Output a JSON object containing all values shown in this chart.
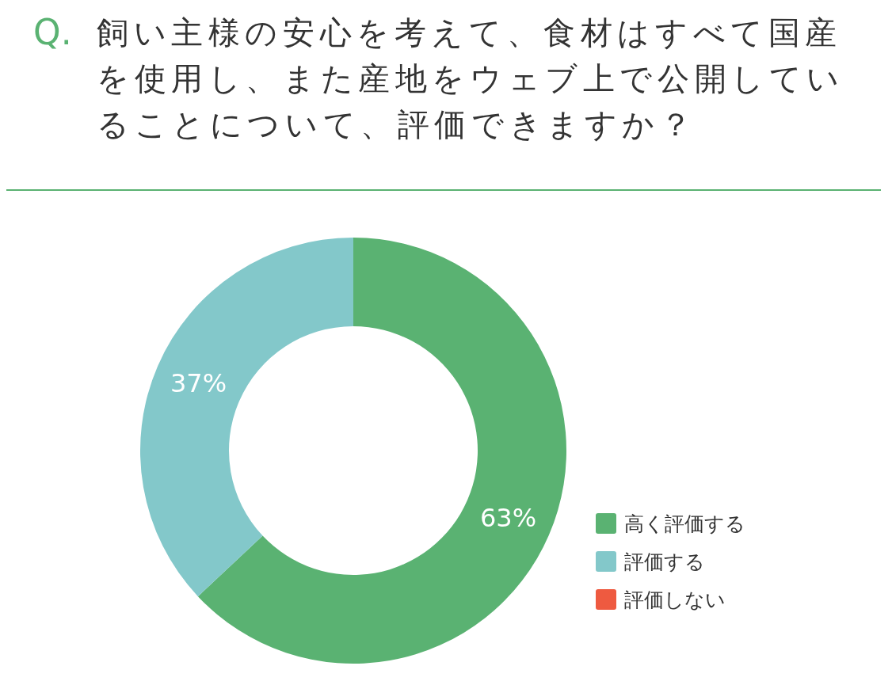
{
  "chart_data": {
    "type": "donut",
    "title": "Q. 飼い主様の安心を考えて、食材はすべて国産を使用し、また産地をウェブ上で公開していることについて、評価できますか？",
    "categories": [
      "高く評価する",
      "評価する",
      "評価しない"
    ],
    "values": [
      63,
      37,
      0
    ],
    "colors": [
      "#5ab272",
      "#83c8ca",
      "#ee5a40"
    ],
    "value_labels": [
      "63%",
      "37%",
      null
    ],
    "legend": "right"
  }
}
